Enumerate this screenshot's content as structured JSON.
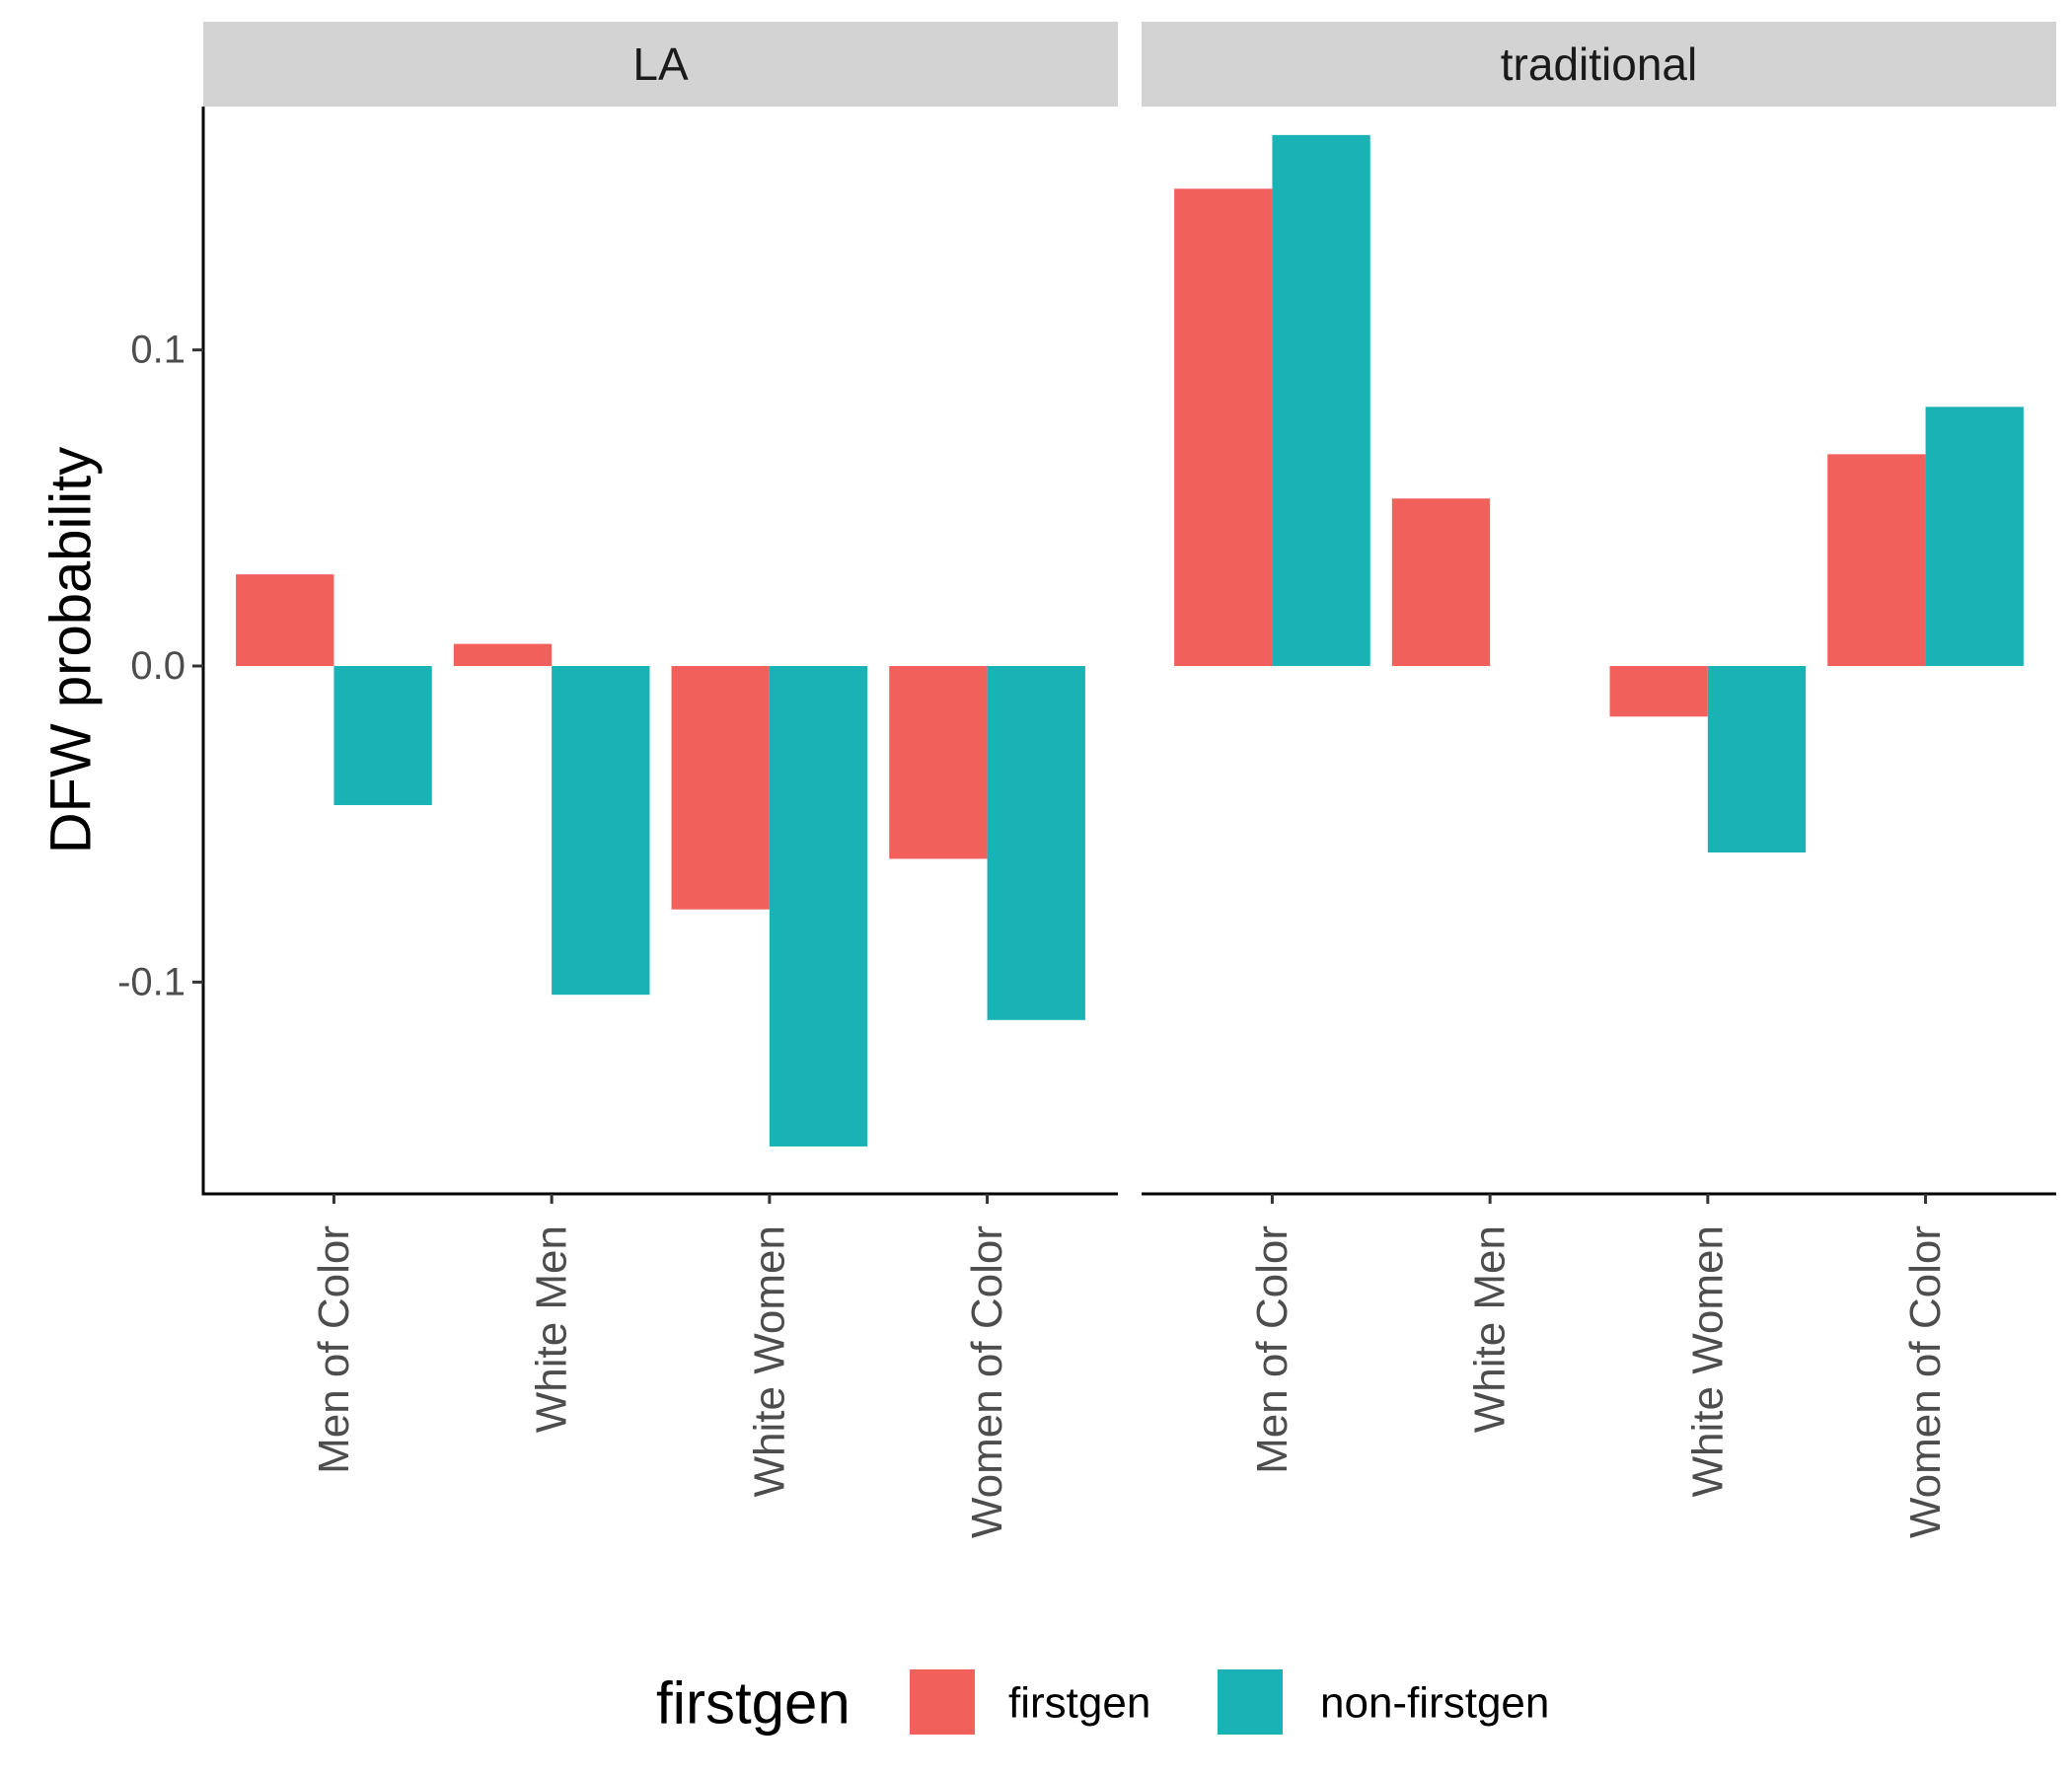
{
  "chart_data": {
    "type": "bar",
    "facet_variable": "",
    "facets": [
      "LA",
      "traditional"
    ],
    "categories": [
      "Men of Color",
      "White Men",
      "White Women",
      "Women of Color"
    ],
    "ylabel": "DFW probability",
    "xlabel": "",
    "ylim": [
      -0.167,
      0.177
    ],
    "yticks": [
      -0.1,
      0.0,
      0.1
    ],
    "ytick_labels": [
      "-0.1",
      "0.0",
      "0.1"
    ],
    "grid": false,
    "legend": {
      "title": "firstgen",
      "position": "bottom"
    },
    "series": [
      {
        "name": "firstgen",
        "color": "#F2605C"
      },
      {
        "name": "non-firstgen",
        "color": "#19B3B6"
      }
    ],
    "panels": [
      {
        "facet": "LA",
        "series_values": {
          "firstgen": [
            0.029,
            0.007,
            -0.077,
            -0.061
          ],
          "non-firstgen": [
            -0.044,
            -0.104,
            -0.152,
            -0.112
          ]
        }
      },
      {
        "facet": "traditional",
        "series_values": {
          "firstgen": [
            0.151,
            0.053,
            -0.016,
            0.067
          ],
          "non-firstgen": [
            0.168,
            null,
            -0.059,
            0.082
          ]
        }
      }
    ]
  }
}
